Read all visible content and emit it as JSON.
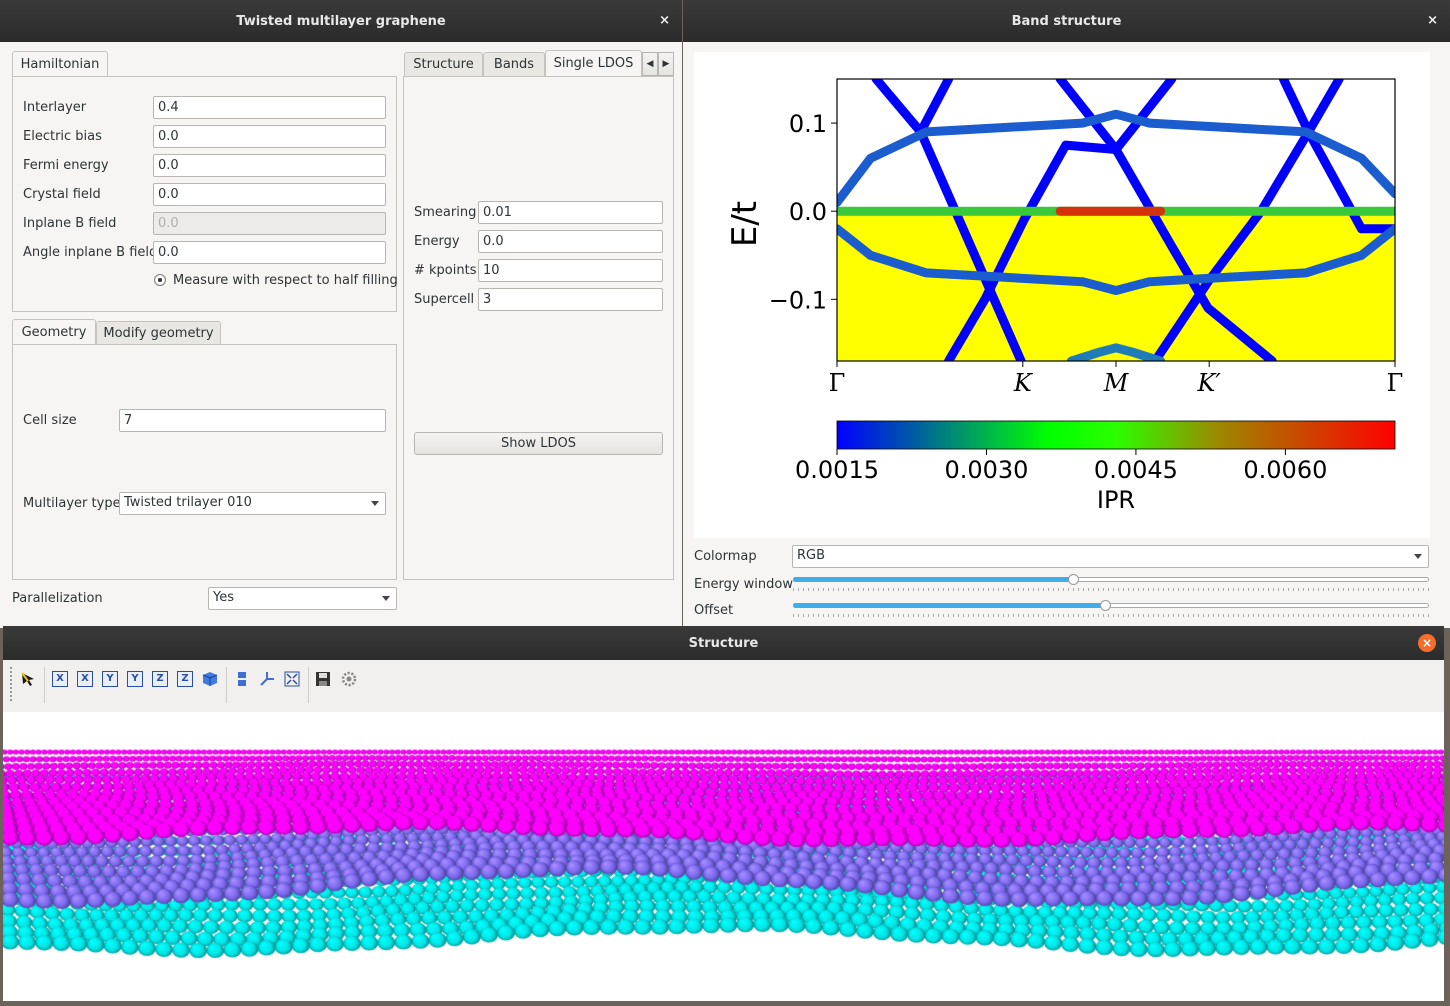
{
  "main_window": {
    "title": "Twisted multilayer graphene",
    "close": "×",
    "hamiltonian_tab": "Hamiltonian",
    "fields": [
      {
        "label": "Interlayer",
        "value": "0.4"
      },
      {
        "label": "Electric bias",
        "value": "0.0"
      },
      {
        "label": "Fermi energy",
        "value": "0.0"
      },
      {
        "label": "Crystal field",
        "value": "0.0"
      },
      {
        "label": "Inplane B field",
        "value": "0.0"
      },
      {
        "label": "Angle inplane B field",
        "value": "0.0"
      }
    ],
    "half_filling": "Measure with respect to half filling",
    "geometry_tabs": [
      "Geometry",
      "Modify geometry"
    ],
    "cell_size_label": "Cell size",
    "cell_size_value": "7",
    "multilayer_label": "Multilayer type",
    "multilayer_value": "Twisted trilayer 010",
    "parallel_label": "Parallelization",
    "parallel_value": "Yes",
    "right_tabs": [
      "Structure",
      "Bands",
      "Single LDOS"
    ],
    "ldos_fields": [
      {
        "label": "Smearing",
        "value": "0.01"
      },
      {
        "label": "Energy",
        "value": "0.0"
      },
      {
        "label": "# kpoints",
        "value": "10"
      },
      {
        "label": "Supercell",
        "value": "3"
      }
    ],
    "show_ldos": "Show LDOS"
  },
  "band_window": {
    "title": "Band structure",
    "close": "×",
    "colormap_label": "Colormap",
    "colormap_value": "RGB",
    "energy_window_label": "Energy window",
    "energy_window_level": 0.44,
    "offset_label": "Offset",
    "offset_level": 0.49
  },
  "structure_window": {
    "title": "Structure",
    "close": "×",
    "toolbar_icons": [
      "cursor-icon",
      "x-axis-icon",
      "x-axis-reverse-icon",
      "y-axis-icon",
      "y-axis-reverse-icon",
      "z-axis-icon",
      "z-axis-reverse-icon",
      "iso-view-icon",
      "parallel-projection-icon",
      "orientation-icon",
      "fullscreen-icon",
      "save-icon",
      "settings-icon"
    ],
    "layer_colors": [
      "#ff00ff",
      "#7b68ee",
      "#00e5e5"
    ]
  },
  "chart_data": {
    "type": "line",
    "xlabel": "",
    "ylabel": "E/t",
    "x_ticks": [
      "Γ",
      "K",
      "M",
      "K′",
      "Γ"
    ],
    "y_ticks": [
      "0.1",
      "0.0",
      "−0.1"
    ],
    "ylim": [
      -0.17,
      0.15
    ],
    "colorbar_label": "IPR",
    "colorbar_ticks": [
      "0.0015",
      "0.0030",
      "0.0045",
      "0.0060"
    ],
    "colorbar_range": [
      0.0015,
      0.0071
    ],
    "filled_region": {
      "color": "#ffff00",
      "from": -0.17,
      "to": 0.0
    },
    "series": [
      {
        "color": "#0000ff",
        "points": [
          [
            0.07,
            0.15
          ],
          [
            0.15,
            0.09
          ],
          [
            0.33,
            -0.17
          ]
        ]
      },
      {
        "color": "#0000ff",
        "points": [
          [
            0.15,
            0.09
          ],
          [
            0.2,
            0.15
          ]
        ]
      },
      {
        "color": "#0000ff",
        "points": [
          [
            0.4,
            0.15
          ],
          [
            0.5,
            0.07
          ],
          [
            0.6,
            -0.04
          ],
          [
            0.665,
            -0.11
          ],
          [
            0.78,
            -0.17
          ]
        ]
      },
      {
        "color": "#0000ff",
        "points": [
          [
            0.2,
            -0.17
          ],
          [
            0.265,
            -0.1
          ],
          [
            0.335,
            -0.01
          ],
          [
            0.41,
            0.075
          ],
          [
            0.5,
            0.07
          ]
        ]
      },
      {
        "color": "#0000ff",
        "points": [
          [
            0.5,
            0.07
          ],
          [
            0.6,
            0.15
          ]
        ]
      },
      {
        "color": "#0000ff",
        "points": [
          [
            0.57,
            -0.17
          ],
          [
            0.665,
            -0.08
          ],
          [
            0.76,
            0.0
          ],
          [
            0.845,
            0.09
          ],
          [
            0.9,
            0.15
          ]
        ]
      },
      {
        "color": "#0000ff",
        "points": [
          [
            0.8,
            0.15
          ],
          [
            0.845,
            0.09
          ],
          [
            0.94,
            -0.02
          ],
          [
            1.0,
            -0.02
          ]
        ]
      },
      {
        "color": "#1b5dcf",
        "points": [
          [
            0.0,
            0.01
          ],
          [
            0.06,
            0.06
          ],
          [
            0.16,
            0.09
          ],
          [
            0.3,
            0.095
          ],
          [
            0.44,
            0.1
          ],
          [
            0.5,
            0.11
          ],
          [
            0.56,
            0.1
          ],
          [
            0.7,
            0.095
          ],
          [
            0.84,
            0.09
          ],
          [
            0.94,
            0.06
          ],
          [
            1.0,
            0.02
          ]
        ]
      },
      {
        "color": "#1b5dcf",
        "points": [
          [
            0.0,
            -0.02
          ],
          [
            0.06,
            -0.05
          ],
          [
            0.16,
            -0.07
          ],
          [
            0.3,
            -0.075
          ],
          [
            0.44,
            -0.08
          ],
          [
            0.5,
            -0.09
          ],
          [
            0.56,
            -0.08
          ],
          [
            0.7,
            -0.075
          ],
          [
            0.84,
            -0.07
          ],
          [
            0.94,
            -0.05
          ],
          [
            1.0,
            -0.02
          ]
        ]
      },
      {
        "color": "#1e7cb8",
        "points": [
          [
            0.42,
            -0.17
          ],
          [
            0.47,
            -0.16
          ],
          [
            0.5,
            -0.155
          ],
          [
            0.53,
            -0.16
          ],
          [
            0.58,
            -0.17
          ]
        ]
      },
      {
        "color": "#39c93a",
        "points": [
          [
            0.0,
            0.0
          ],
          [
            0.3,
            0.0
          ],
          [
            0.4,
            0.0
          ],
          [
            0.5,
            0.0
          ],
          [
            0.6,
            0.0
          ],
          [
            0.7,
            0.0
          ],
          [
            1.0,
            0.0
          ]
        ]
      },
      {
        "color": "#d4320a",
        "points": [
          [
            0.4,
            0.0
          ],
          [
            0.5,
            0.0
          ],
          [
            0.58,
            0.0
          ]
        ]
      }
    ]
  }
}
